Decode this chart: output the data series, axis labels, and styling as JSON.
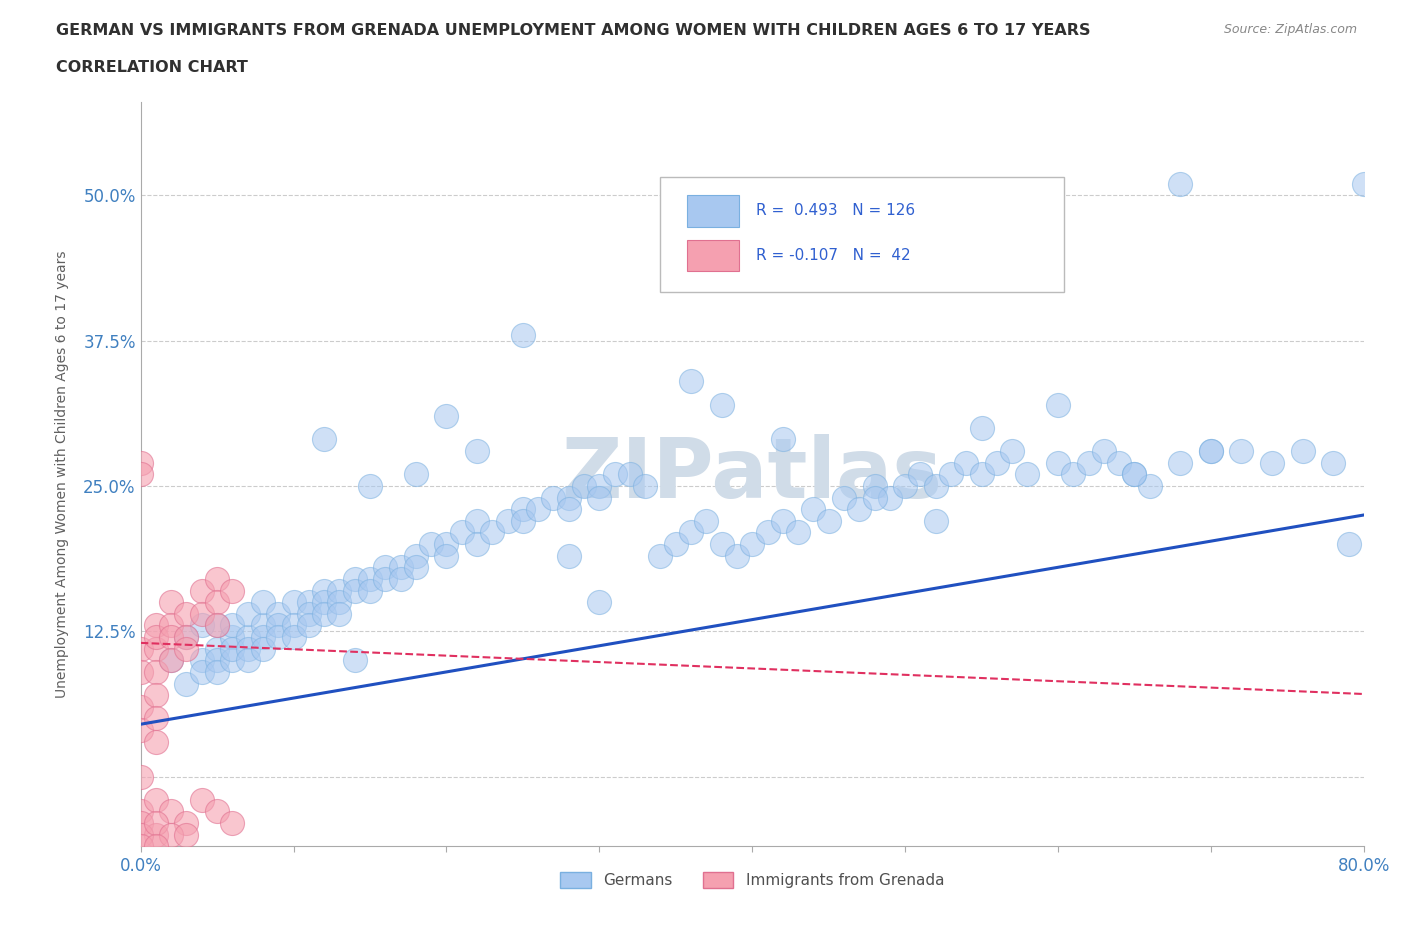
{
  "title_line1": "GERMAN VS IMMIGRANTS FROM GRENADA UNEMPLOYMENT AMONG WOMEN WITH CHILDREN AGES 6 TO 17 YEARS",
  "title_line2": "CORRELATION CHART",
  "source": "Source: ZipAtlas.com",
  "ylabel": "Unemployment Among Women with Children Ages 6 to 17 years",
  "xlim": [
    0.0,
    0.8
  ],
  "ylim": [
    -0.06,
    0.58
  ],
  "xticks": [
    0.0,
    0.1,
    0.2,
    0.3,
    0.4,
    0.5,
    0.6,
    0.7,
    0.8
  ],
  "yticks": [
    0.0,
    0.125,
    0.25,
    0.375,
    0.5
  ],
  "yticklabels": [
    "",
    "12.5%",
    "25.0%",
    "37.5%",
    "50.0%"
  ],
  "german_R": 0.493,
  "german_N": 126,
  "grenada_R": -0.107,
  "grenada_N": 42,
  "german_color": "#a8c8f0",
  "german_edge_color": "#7ab0e0",
  "grenada_color": "#f5a0b0",
  "grenada_edge_color": "#e07090",
  "german_line_color": "#2050c0",
  "grenada_line_color": "#e03060",
  "watermark_color": "#d0dce8",
  "background_color": "#ffffff",
  "grid_color": "#cccccc",
  "title_color": "#303030",
  "axis_label_color": "#606060",
  "tick_label_color": "#4080c0",
  "marker_size": 300,
  "german_slope": 0.225,
  "german_intercept": 0.045,
  "grenada_slope": -0.055,
  "grenada_intercept": 0.115,
  "german_points_x": [
    0.02,
    0.03,
    0.03,
    0.04,
    0.04,
    0.04,
    0.05,
    0.05,
    0.05,
    0.05,
    0.06,
    0.06,
    0.06,
    0.06,
    0.07,
    0.07,
    0.07,
    0.07,
    0.08,
    0.08,
    0.08,
    0.08,
    0.09,
    0.09,
    0.09,
    0.1,
    0.1,
    0.1,
    0.11,
    0.11,
    0.11,
    0.12,
    0.12,
    0.12,
    0.13,
    0.13,
    0.13,
    0.14,
    0.14,
    0.15,
    0.15,
    0.16,
    0.16,
    0.17,
    0.17,
    0.18,
    0.18,
    0.19,
    0.2,
    0.2,
    0.21,
    0.22,
    0.22,
    0.23,
    0.24,
    0.25,
    0.25,
    0.26,
    0.27,
    0.28,
    0.28,
    0.29,
    0.3,
    0.3,
    0.31,
    0.32,
    0.33,
    0.34,
    0.35,
    0.36,
    0.37,
    0.38,
    0.39,
    0.4,
    0.41,
    0.42,
    0.43,
    0.44,
    0.45,
    0.46,
    0.47,
    0.48,
    0.49,
    0.5,
    0.51,
    0.52,
    0.53,
    0.54,
    0.55,
    0.56,
    0.57,
    0.58,
    0.6,
    0.61,
    0.62,
    0.63,
    0.64,
    0.65,
    0.66,
    0.68,
    0.7,
    0.72,
    0.74,
    0.76,
    0.78,
    0.79,
    0.55,
    0.6,
    0.65,
    0.42,
    0.38,
    0.36,
    0.25,
    0.2,
    0.22,
    0.18,
    0.15,
    0.12,
    0.68,
    0.7,
    0.52,
    0.48,
    0.3,
    0.28,
    0.14,
    0.8
  ],
  "german_points_y": [
    0.1,
    0.12,
    0.08,
    0.13,
    0.1,
    0.09,
    0.11,
    0.13,
    0.1,
    0.09,
    0.12,
    0.1,
    0.13,
    0.11,
    0.12,
    0.14,
    0.11,
    0.1,
    0.13,
    0.12,
    0.15,
    0.11,
    0.14,
    0.13,
    0.12,
    0.15,
    0.13,
    0.12,
    0.15,
    0.14,
    0.13,
    0.16,
    0.15,
    0.14,
    0.16,
    0.15,
    0.14,
    0.17,
    0.16,
    0.17,
    0.16,
    0.18,
    0.17,
    0.18,
    0.17,
    0.19,
    0.18,
    0.2,
    0.2,
    0.19,
    0.21,
    0.22,
    0.2,
    0.21,
    0.22,
    0.23,
    0.22,
    0.23,
    0.24,
    0.24,
    0.23,
    0.25,
    0.25,
    0.24,
    0.26,
    0.26,
    0.25,
    0.19,
    0.2,
    0.21,
    0.22,
    0.2,
    0.19,
    0.2,
    0.21,
    0.22,
    0.21,
    0.23,
    0.22,
    0.24,
    0.23,
    0.25,
    0.24,
    0.25,
    0.26,
    0.25,
    0.26,
    0.27,
    0.26,
    0.27,
    0.28,
    0.26,
    0.27,
    0.26,
    0.27,
    0.28,
    0.27,
    0.26,
    0.25,
    0.27,
    0.28,
    0.28,
    0.27,
    0.28,
    0.27,
    0.2,
    0.3,
    0.32,
    0.26,
    0.29,
    0.32,
    0.34,
    0.38,
    0.31,
    0.28,
    0.26,
    0.25,
    0.29,
    0.51,
    0.28,
    0.22,
    0.24,
    0.15,
    0.19,
    0.1,
    0.51
  ],
  "grenada_points_x": [
    0.0,
    0.0,
    0.0,
    0.0,
    0.0,
    0.0,
    0.0,
    0.01,
    0.01,
    0.01,
    0.01,
    0.01,
    0.01,
    0.01,
    0.02,
    0.02,
    0.02,
    0.02,
    0.03,
    0.03,
    0.03,
    0.04,
    0.04,
    0.05,
    0.05,
    0.05,
    0.06,
    0.0,
    0.0,
    0.01,
    0.01,
    0.02,
    0.03,
    0.04,
    0.05,
    0.0,
    0.01,
    0.02,
    0.0,
    0.01,
    0.03,
    0.06
  ],
  "grenada_points_y": [
    0.0,
    0.27,
    0.26,
    0.11,
    0.09,
    0.06,
    0.04,
    0.13,
    0.11,
    0.09,
    0.07,
    0.05,
    0.03,
    0.12,
    0.15,
    0.13,
    0.12,
    0.1,
    0.14,
    0.12,
    0.11,
    0.16,
    0.14,
    0.17,
    0.15,
    0.13,
    0.16,
    -0.03,
    -0.04,
    -0.02,
    -0.05,
    -0.03,
    -0.04,
    -0.02,
    -0.03,
    -0.05,
    -0.04,
    -0.05,
    -0.06,
    -0.06,
    -0.05,
    -0.04
  ]
}
